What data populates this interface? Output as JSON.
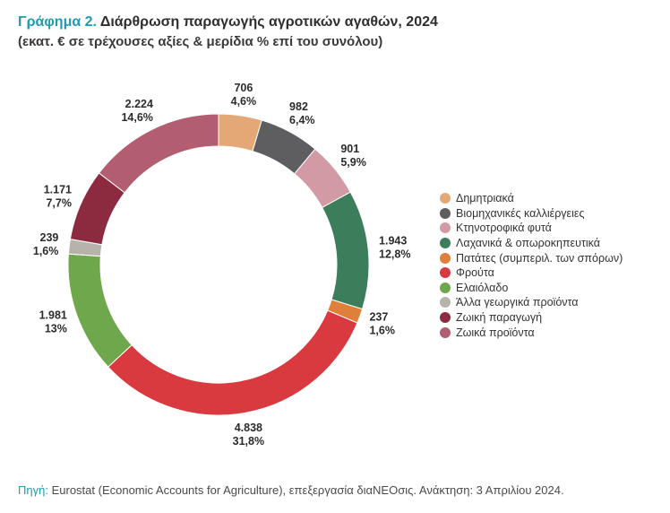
{
  "title": {
    "prefix": "Γράφημα 2.",
    "main": "Διάρθρωση παραγωγής αγροτικών αγαθών, 2024",
    "subtitle": "(εκατ. € σε τρέχουσες αξίες & μερίδια % επί του συνόλου)"
  },
  "chart_data": {
    "type": "pie",
    "subtype": "donut",
    "title": "Διάρθρωση παραγωγής αγροτικών αγαθών, 2024",
    "unit": "εκατ. €",
    "legend_position": "right",
    "slices": [
      {
        "name": "Δημητριακά",
        "value": 706,
        "value_label": "706",
        "share_label": "4,6%",
        "color": "#e4a876"
      },
      {
        "name": "Βιομηχανικές καλλιέργειες",
        "value": 982,
        "value_label": "982",
        "share_label": "6,4%",
        "color": "#5e5e60"
      },
      {
        "name": "Κτηνοτροφικά φυτά",
        "value": 901,
        "value_label": "901",
        "share_label": "5,9%",
        "color": "#d29aa5"
      },
      {
        "name": "Λαχανικά & οπωροκηπευτικά",
        "value": 1943,
        "value_label": "1.943",
        "share_label": "12,8%",
        "color": "#3c7d5c"
      },
      {
        "name": "Πατάτες (συμπεριλ. των σπόρων)",
        "value": 237,
        "value_label": "237",
        "share_label": "1,6%",
        "color": "#de803a"
      },
      {
        "name": "Φρούτα",
        "value": 4838,
        "value_label": "4.838",
        "share_label": "31,8%",
        "color": "#d83a40"
      },
      {
        "name": "Ελαιόλαδο",
        "value": 1981,
        "value_label": "1.981",
        "share_label": "13%",
        "color": "#6fa84c"
      },
      {
        "name": "Άλλα γεωργικά προϊόντα",
        "value": 239,
        "value_label": "239",
        "share_label": "1,6%",
        "color": "#b7b3ab"
      },
      {
        "name": "Ζωική παραγωγή",
        "value": 1171,
        "value_label": "1.171",
        "share_label": "7,7%",
        "color": "#8c2a3f"
      },
      {
        "name": "Ζωικά προϊόντα",
        "value": 2224,
        "value_label": "2.224",
        "share_label": "14,6%",
        "color": "#b35e70"
      }
    ]
  },
  "source": {
    "label": "Πηγή:",
    "text": "Eurostat (Economic Accounts for Agriculture), επεξεργασία διαΝΕΟσις. Ανάκτηση: 3 Απριλίου 2024."
  }
}
